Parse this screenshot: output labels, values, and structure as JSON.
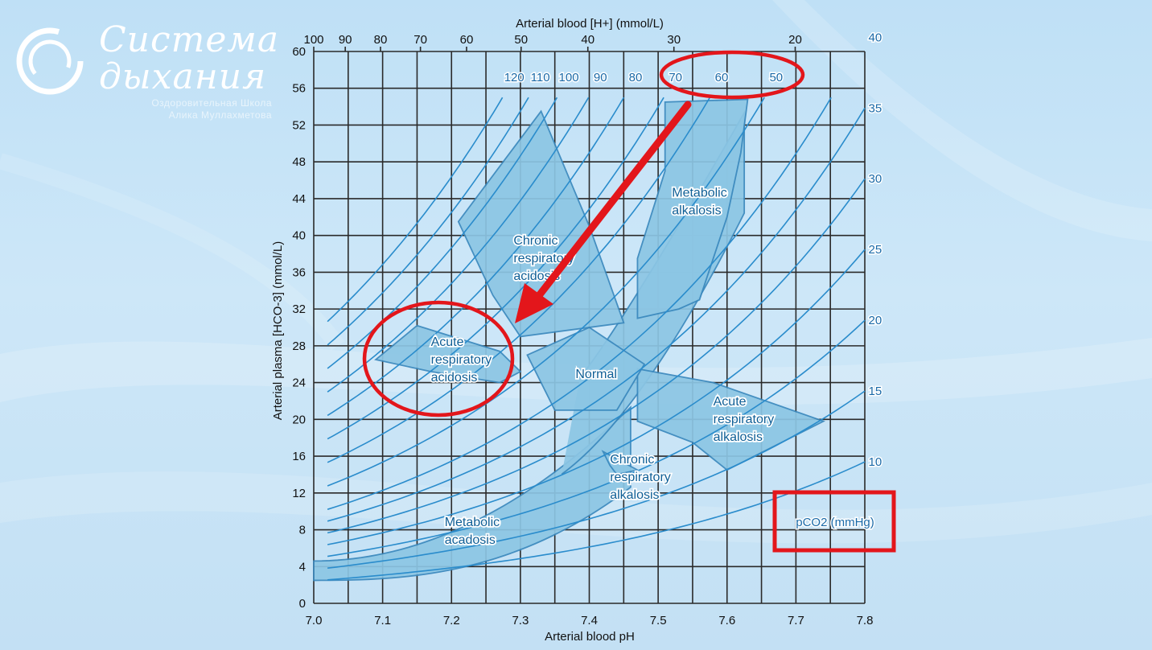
{
  "branding": {
    "title_line1": "Система",
    "title_line2": "дыхания",
    "subtitle_line1": "Оздоровительная Школа",
    "subtitle_line2": "Алика Муллахметова"
  },
  "colors": {
    "grid": "#2a2a2a",
    "isobar": "#2a8ccc",
    "region_fill": "#8cc6e4",
    "region_stroke": "#3a88bd",
    "highlight": "#e3161b",
    "label_text": "#0f5f96"
  },
  "chart_data": {
    "type": "scatter",
    "title": "",
    "xlabel": "Arterial blood pH",
    "ylabel": "Arterial plasma [HCO-3] (mmol/L)",
    "top_axis_label": "Arterial blood [H+] (mmol/L)",
    "xlim": [
      7.0,
      7.8
    ],
    "ylim": [
      0,
      60
    ],
    "x_ticks": [
      "7.0",
      "7.1",
      "7.2",
      "7.3",
      "7.4",
      "7.5",
      "7.6",
      "7.7",
      "7.8"
    ],
    "y_ticks": [
      "0",
      "4",
      "8",
      "12",
      "16",
      "20",
      "24",
      "28",
      "32",
      "36",
      "40",
      "44",
      "48",
      "52",
      "56",
      "60"
    ],
    "top_ticks": [
      {
        "label": "100",
        "value": 100
      },
      {
        "label": "90",
        "value": 90
      },
      {
        "label": "80",
        "value": 80
      },
      {
        "label": "70",
        "value": 70
      },
      {
        "label": "60",
        "value": 60
      },
      {
        "label": "50",
        "value": 50
      },
      {
        "label": "40",
        "value": 40
      },
      {
        "label": "30",
        "value": 30
      },
      {
        "label": "20",
        "value": 20
      }
    ],
    "pco2_series_label": "pCO2 (mmHg)",
    "pco2_isobars": [
      {
        "label": "120",
        "value": 120
      },
      {
        "label": "110",
        "value": 110
      },
      {
        "label": "100",
        "value": 100
      },
      {
        "label": "90",
        "value": 90
      },
      {
        "label": "80",
        "value": 80
      },
      {
        "label": "70",
        "value": 70
      },
      {
        "label": "60",
        "value": 60
      },
      {
        "label": "50",
        "value": 50
      },
      {
        "label": "40",
        "value": 40
      },
      {
        "label": "35",
        "value": 35
      },
      {
        "label": "30",
        "value": 30
      },
      {
        "label": "25",
        "value": 25
      },
      {
        "label": "20",
        "value": 20
      },
      {
        "label": "15",
        "value": 15
      },
      {
        "label": "10",
        "value": 10
      }
    ],
    "grid": true,
    "regions": [
      {
        "name": "Chronic respiratory acidosis",
        "lines": [
          "Chronic",
          "respiratory",
          "acidosis"
        ],
        "polygon": [
          [
            7.21,
            41.5
          ],
          [
            7.33,
            53.5
          ],
          [
            7.4,
            41
          ],
          [
            7.45,
            30.5
          ],
          [
            7.3,
            29
          ],
          [
            7.26,
            33.5
          ]
        ]
      },
      {
        "name": "Metabolic alkalosis",
        "lines": [
          "Metabolic",
          "alkalosis"
        ],
        "polygon": [
          [
            7.51,
            54.5
          ],
          [
            7.63,
            54.8
          ],
          [
            7.62,
            49
          ],
          [
            7.6,
            42
          ],
          [
            7.56,
            33
          ],
          [
            7.53,
            32
          ],
          [
            7.47,
            31
          ],
          [
            7.47,
            37.5
          ],
          [
            7.51,
            47
          ]
        ]
      },
      {
        "name": "Acute respiratory acidosis",
        "lines": [
          "Acute",
          "respiratory",
          "acidosis"
        ],
        "polygon": [
          [
            7.09,
            26.5
          ],
          [
            7.15,
            30.2
          ],
          [
            7.27,
            27.4
          ],
          [
            7.3,
            25.2
          ],
          [
            7.27,
            24
          ],
          [
            7.17,
            25.2
          ]
        ]
      },
      {
        "name": "Acute respiratory alkalosis",
        "lines": [
          "Acute",
          "respiratory",
          "alkalosis"
        ],
        "polygon": [
          [
            7.47,
            25.5
          ],
          [
            7.58,
            24
          ],
          [
            7.74,
            19.8
          ],
          [
            7.6,
            14.5
          ],
          [
            7.55,
            17.5
          ],
          [
            7.47,
            19.8
          ]
        ]
      },
      {
        "name": "Chronic respiratory alkalosis",
        "lines": [
          "Chronic",
          "respiratory",
          "alkalosis"
        ],
        "polygon": [
          [
            7.42,
            16.5
          ],
          [
            7.47,
            14.5
          ],
          [
            7.44,
            14
          ],
          [
            7.43,
            15
          ]
        ]
      },
      {
        "name": "Metabolic acadosis",
        "lines": [
          "Metabolic",
          "acadosis"
        ],
        "polygon": []
      },
      {
        "name": "Normal",
        "lines": [
          "Normal"
        ],
        "polygon": []
      }
    ]
  },
  "annotations": {
    "arrow_from_pco2": 70,
    "arrow_to_region": "Acute respiratory acidosis"
  }
}
